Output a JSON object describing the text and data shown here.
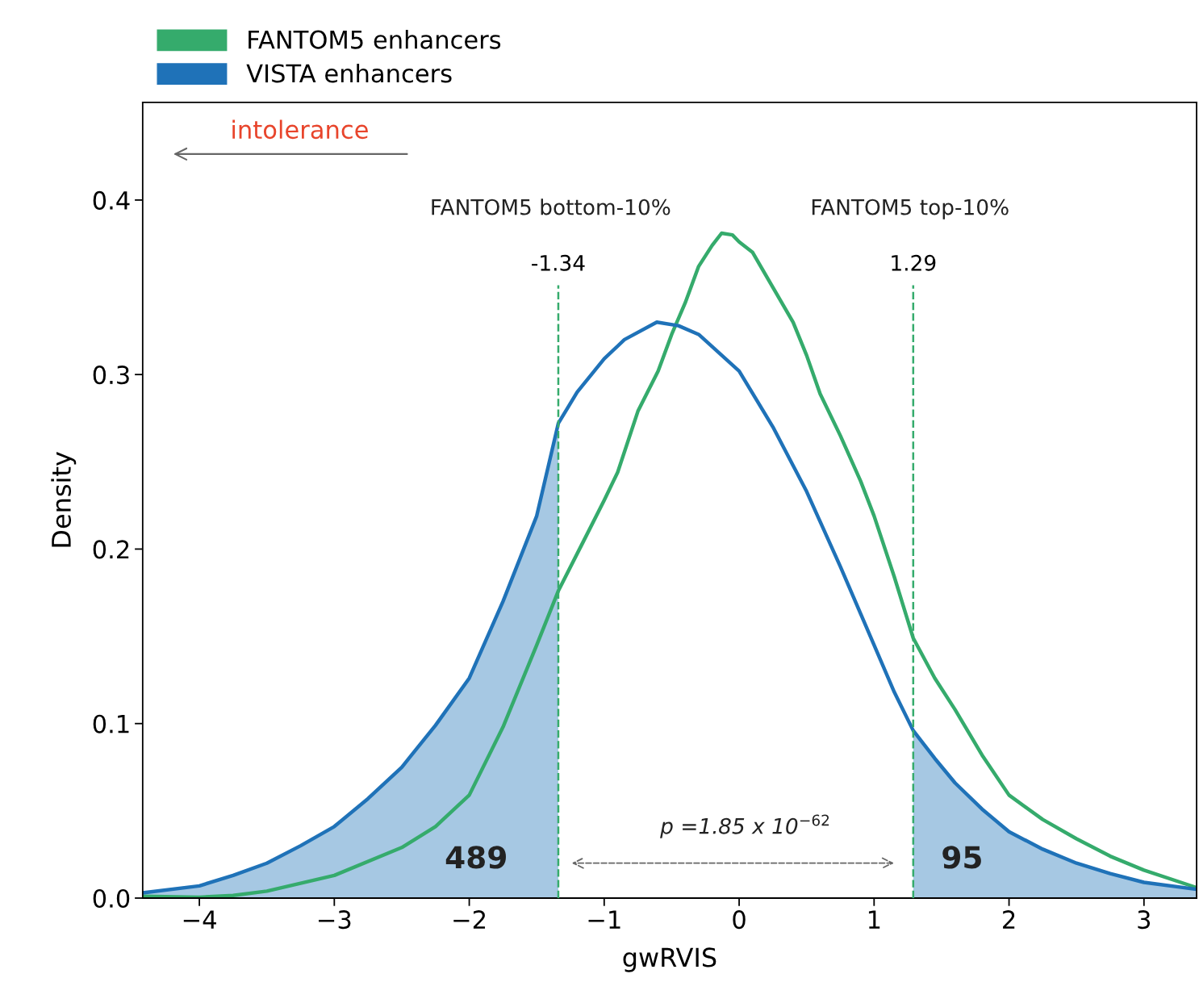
{
  "chart_data": {
    "type": "line",
    "xlabel": "gwRVIS",
    "ylabel": "Density",
    "xlim": [
      -4.42,
      3.39
    ],
    "ylim": [
      0,
      0.456
    ],
    "xticks": [
      {
        "value": -4,
        "label": "−4"
      },
      {
        "value": -3,
        "label": "−3"
      },
      {
        "value": -2,
        "label": "−2"
      },
      {
        "value": -1,
        "label": "−1"
      },
      0,
      1,
      2,
      3
    ],
    "yticks": [
      {
        "value": 0,
        "label": "0.0"
      },
      0.1,
      0.2,
      0.3,
      0.4
    ],
    "series": [
      {
        "type": "area",
        "color": "#a6c8e3",
        "x": [
          -4.42,
          -4,
          -3.75,
          -3.5,
          -3.25,
          -3,
          -2.75,
          -2.5,
          -2.25,
          -2,
          -1.75,
          -1.5,
          -1.34
        ],
        "values": [
          0.003,
          0.007,
          0.013,
          0.02,
          0.03,
          0.041,
          0.057,
          0.075,
          0.099,
          0.126,
          0.17,
          0.219,
          0.272
        ]
      },
      {
        "type": "area",
        "color": "#a6c8e3",
        "x": [
          1.29,
          1.45,
          1.6,
          1.8,
          2,
          2.25,
          2.5,
          2.75,
          3,
          3.39
        ],
        "values": [
          0.096,
          0.08,
          0.066,
          0.051,
          0.038,
          0.028,
          0.02,
          0.014,
          0.009,
          0.005
        ]
      },
      {
        "name": "FANTOM5 enhancers",
        "color": "#35ab6c",
        "x": [
          -4.42,
          -4,
          -3.75,
          -3.5,
          -3,
          -2.5,
          -2.25,
          -2,
          -1.75,
          -1.5,
          -1.34,
          -1.15,
          -1,
          -0.9,
          -0.75,
          -0.6,
          -0.5,
          -0.4,
          -0.3,
          -0.2,
          -0.13,
          -0.05,
          0,
          0.1,
          0.25,
          0.4,
          0.5,
          0.6,
          0.75,
          0.9,
          1,
          1.15,
          1.29,
          1.45,
          1.6,
          1.8,
          2,
          2.25,
          2.5,
          2.75,
          3,
          3.39
        ],
        "values": [
          0.001,
          0.0005,
          0.0015,
          0.004,
          0.013,
          0.029,
          0.041,
          0.059,
          0.098,
          0.145,
          0.176,
          0.205,
          0.228,
          0.244,
          0.279,
          0.302,
          0.323,
          0.341,
          0.362,
          0.374,
          0.381,
          0.38,
          0.376,
          0.37,
          0.35,
          0.33,
          0.311,
          0.289,
          0.265,
          0.239,
          0.219,
          0.184,
          0.149,
          0.126,
          0.108,
          0.082,
          0.059,
          0.045,
          0.034,
          0.024,
          0.016,
          0.006
        ]
      },
      {
        "name": "VISTA enhancers",
        "color": "#1f72b8",
        "x": [
          -4.42,
          -4,
          -3.75,
          -3.5,
          -3.25,
          -3,
          -2.75,
          -2.5,
          -2.25,
          -2,
          -1.75,
          -1.5,
          -1.34,
          -1.2,
          -1,
          -0.85,
          -0.61,
          -0.45,
          -0.3,
          0,
          0.25,
          0.5,
          0.75,
          1,
          1.15,
          1.29,
          1.45,
          1.6,
          1.8,
          2,
          2.25,
          2.5,
          2.75,
          3,
          3.39
        ],
        "values": [
          0.003,
          0.007,
          0.013,
          0.02,
          0.03,
          0.041,
          0.057,
          0.075,
          0.099,
          0.126,
          0.17,
          0.219,
          0.272,
          0.29,
          0.309,
          0.32,
          0.33,
          0.328,
          0.323,
          0.302,
          0.27,
          0.233,
          0.19,
          0.145,
          0.118,
          0.096,
          0.08,
          0.066,
          0.051,
          0.038,
          0.028,
          0.02,
          0.014,
          0.009,
          0.005
        ]
      }
    ],
    "ref_lines": [
      {
        "axis": "x",
        "value": -1.34,
        "label": "-1.34",
        "color": "#35ab6c",
        "line_style": "dashed"
      },
      {
        "axis": "x",
        "value": 1.29,
        "label": "1.29",
        "color": "#35ab6c",
        "line_style": "dashed"
      }
    ],
    "annotations": [
      "FANTOM5 bottom-10%",
      "FANTOM5 top-10%",
      "489",
      "95",
      "intolerance",
      "p =1.85 x 10$^{−62}$"
    ],
    "legend": "top left",
    "grid": false
  }
}
